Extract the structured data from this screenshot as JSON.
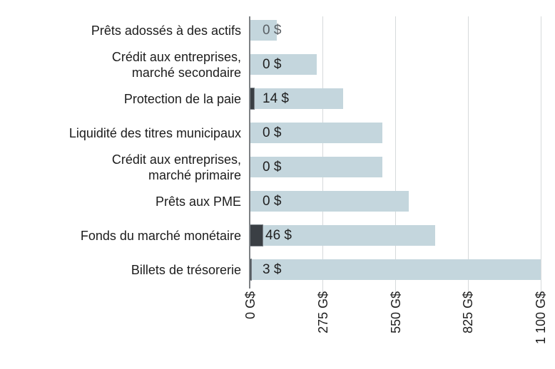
{
  "chart_data": {
    "type": "bar",
    "orientation": "horizontal",
    "title": "",
    "categories": [
      "Prêts adossés à des actifs",
      "Crédit aux entreprises,\nmarché secondaire",
      "Protection de la paie",
      "Liquidité des titres municipaux",
      "Crédit aux entreprises,\nmarché primaire",
      "Prêts aux PME",
      "Fonds du marché monétaire",
      "Billets de trésorerie"
    ],
    "series": [
      {
        "name": "program-capacity",
        "color": "#c4d6dd",
        "values": [
          100,
          250,
          350,
          500,
          500,
          600,
          700,
          1100
        ]
      },
      {
        "name": "amount-used",
        "color": "#3a3f44",
        "values": [
          0,
          0,
          14,
          0,
          0,
          0,
          46,
          3
        ]
      }
    ],
    "value_labels": [
      {
        "text": "0 $",
        "muted": true
      },
      {
        "text": "0 $",
        "muted": false
      },
      {
        "text": "14 $",
        "muted": false
      },
      {
        "text": "0 $",
        "muted": false
      },
      {
        "text": "0 $",
        "muted": false
      },
      {
        "text": "0 $",
        "muted": false
      },
      {
        "text": "46 $",
        "muted": false
      },
      {
        "text": "3 $",
        "muted": false
      }
    ],
    "x_ticks": [
      {
        "label": "0 G$",
        "value": 0
      },
      {
        "label": "275 G$",
        "value": 275
      },
      {
        "label": "550 G$",
        "value": 550
      },
      {
        "label": "825 G$",
        "value": 825
      },
      {
        "label": "1 100 G$",
        "value": 1100
      }
    ],
    "xlim": [
      0,
      1100
    ],
    "grid": "vertical",
    "legend": "none",
    "colors": {
      "light_bar": "#c4d6dd",
      "dark_bar": "#3a3f44",
      "dark_bar_border": "#7d848a",
      "gridline": "#d6dadb",
      "axis": "#7d8184",
      "text": "#1c1c1c",
      "muted_value": "#5a6065"
    }
  }
}
